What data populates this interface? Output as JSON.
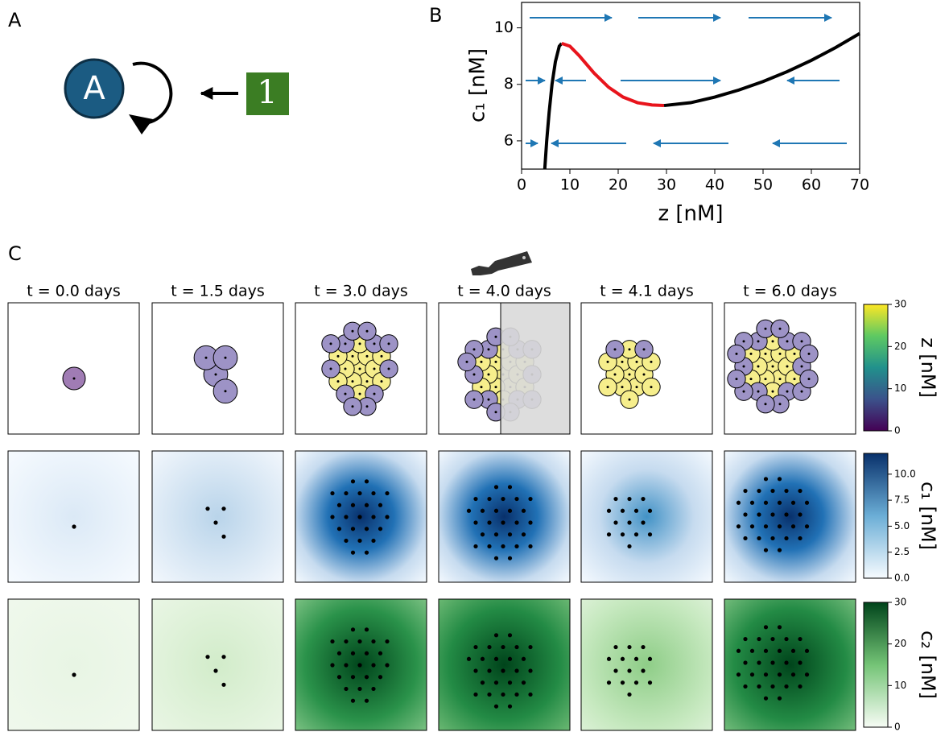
{
  "panel_labels": [
    "A",
    "B",
    "C"
  ],
  "diagram": {
    "node": "A",
    "input": "1"
  },
  "chart_data": {
    "type": "line",
    "xlabel": "z [nM]",
    "ylabel": "c₁ [nM]",
    "xlim": [
      0,
      70
    ],
    "ylim": [
      5,
      10.9
    ],
    "xticks": [
      0,
      10,
      20,
      30,
      40,
      50,
      60,
      70
    ],
    "yticks": [
      6,
      8,
      10
    ],
    "series": [
      {
        "color": "#000000",
        "x": [
          4.8,
          5.2,
          5.7,
          6.3,
          7.0,
          7.8,
          8.3
        ],
        "values": [
          5.0,
          6.0,
          7.0,
          8.0,
          8.8,
          9.35,
          9.45
        ]
      },
      {
        "color": "#e8141c",
        "x": [
          8.3,
          10,
          12,
          15,
          18,
          21,
          24,
          27,
          29.5
        ],
        "values": [
          9.45,
          9.35,
          9.0,
          8.4,
          7.9,
          7.55,
          7.35,
          7.27,
          7.25
        ]
      },
      {
        "color": "#000000",
        "x": [
          29.5,
          35,
          40,
          45,
          50,
          55,
          60,
          65,
          70
        ],
        "values": [
          7.25,
          7.35,
          7.55,
          7.8,
          8.1,
          8.45,
          8.85,
          9.3,
          9.8
        ]
      }
    ]
  },
  "panel_c": {
    "column_titles": [
      "t = 0.0 days",
      "t = 1.5 days",
      "t = 3.0 days",
      "t = 4.0 days",
      "t = 4.1 days",
      "t = 6.0 days"
    ],
    "colorbars": [
      {
        "label": "z [nM]",
        "lim": [
          0,
          30
        ],
        "ticks": [
          0,
          10,
          20,
          30
        ]
      },
      {
        "label": "c₁ [nM]",
        "lim": [
          0,
          12
        ],
        "ticks": [
          {
            "value": 0,
            "label": "0.0"
          },
          {
            "value": 2.5,
            "label": "2.5"
          },
          {
            "value": 5,
            "label": "5.0"
          },
          {
            "value": 7.5,
            "label": "7.5"
          },
          {
            "value": 10,
            "label": "10.0"
          }
        ]
      },
      {
        "label": "c₂ [nM]",
        "lim": [
          0,
          30
        ],
        "ticks": [
          0,
          10,
          20,
          30
        ]
      }
    ]
  }
}
